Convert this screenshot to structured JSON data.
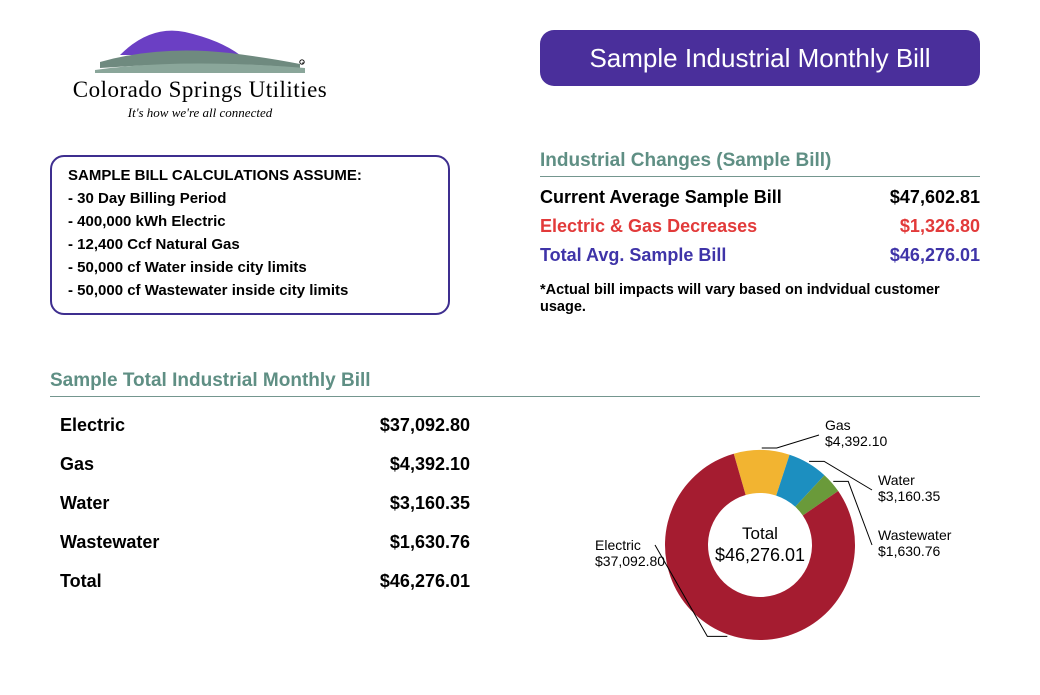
{
  "logo": {
    "name": "Colorado Springs Utilities",
    "tagline": "It's how we're all connected",
    "mountain_color": "#6b3fc4",
    "hill_color": "#6f8a7f",
    "hill_color2": "#8aa69a"
  },
  "title": {
    "text": "Sample Industrial Monthly Bill",
    "bg_color": "#4a2f9b",
    "text_color": "#ffffff"
  },
  "assumptions": {
    "header": "SAMPLE BILL CALCULATIONS ASSUME:",
    "items": [
      "- 30 Day Billing Period",
      "- 400,000 kWh Electric",
      "- 12,400 Ccf Natural Gas",
      "- 50,000 cf Water inside city limits",
      "- 50,000 cf Wastewater inside city limits"
    ],
    "border_color": "#3e2e8f"
  },
  "changes": {
    "header": "Industrial Changes (Sample Bill)",
    "header_color": "#5f8f84",
    "rows": [
      {
        "label": "Current Average Sample Bill",
        "value": "$47,602.81",
        "color": "#000000"
      },
      {
        "label": "Electric & Gas Decreases",
        "value": "$1,326.80",
        "color": "#e23a3a"
      },
      {
        "label": "Total Avg. Sample Bill",
        "value": "$46,276.01",
        "color": "#3f34a8"
      }
    ],
    "footnote": "*Actual bill impacts will vary based on indvidual customer usage."
  },
  "breakdown": {
    "header": "Sample Total Industrial Monthly Bill",
    "header_color": "#5f8f84",
    "rows": [
      {
        "label": "Electric",
        "value": "$37,092.80"
      },
      {
        "label": "Gas",
        "value": "$4,392.10"
      },
      {
        "label": "Water",
        "value": "$3,160.35"
      },
      {
        "label": "Wastewater",
        "value": "$1,630.76"
      },
      {
        "label": "Total",
        "value": "$46,276.01"
      }
    ]
  },
  "donut": {
    "type": "donut",
    "center_label": "Total",
    "center_value": "$46,276.01",
    "inner_radius": 52,
    "outer_radius": 95,
    "slices": [
      {
        "name": "Electric",
        "value": 37092.8,
        "color": "#a51c30",
        "label": "Electric",
        "amount": "$37,092.80"
      },
      {
        "name": "Gas",
        "value": 4392.1,
        "color": "#f2b431",
        "label": "Gas",
        "amount": "$4,392.10"
      },
      {
        "name": "Water",
        "value": 3160.35,
        "color": "#1c8fc0",
        "label": "Water",
        "amount": "$3,160.35"
      },
      {
        "name": "Wastewater",
        "value": 1630.76,
        "color": "#6a9a3a",
        "label": "Wastewater",
        "amount": "$1,630.76"
      }
    ],
    "leader_color": "#000000",
    "label_fontsize": 14
  }
}
